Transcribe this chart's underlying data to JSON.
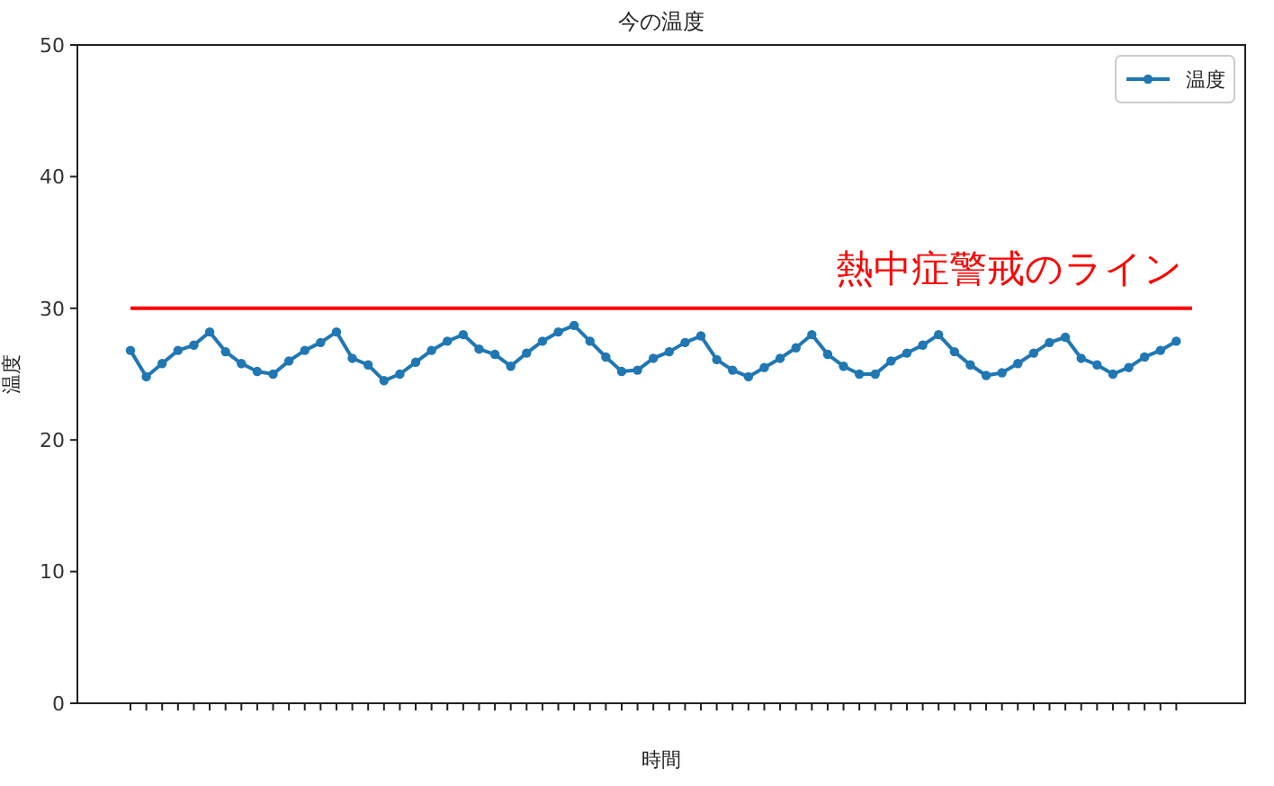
{
  "chart_data": {
    "type": "line",
    "title": "今の温度",
    "xlabel": "時間",
    "ylabel": "温度",
    "categories": [
      null,
      null,
      null,
      null,
      null,
      null,
      null,
      null,
      null,
      null,
      null,
      null,
      null,
      null,
      null,
      null,
      null,
      null,
      null,
      null,
      null,
      null,
      null,
      null,
      null,
      null,
      null,
      null,
      null,
      null,
      null,
      null,
      null,
      null,
      null,
      null,
      null,
      null,
      null,
      null,
      null,
      null,
      null,
      null,
      null,
      null,
      null,
      null,
      null,
      null,
      null,
      null,
      null,
      null,
      null,
      null,
      null,
      null,
      null,
      null,
      null,
      null,
      null,
      null,
      null,
      null,
      null
    ],
    "series": [
      {
        "name": "温度",
        "color": "#1f77b4",
        "values": [
          26.8,
          24.8,
          25.8,
          26.8,
          27.2,
          28.2,
          26.7,
          25.8,
          25.2,
          25.0,
          26.0,
          26.8,
          27.4,
          28.2,
          26.2,
          25.7,
          24.5,
          25.0,
          25.9,
          26.8,
          27.5,
          28.0,
          26.9,
          26.5,
          25.6,
          26.6,
          27.5,
          28.2,
          28.7,
          27.5,
          26.3,
          25.2,
          25.3,
          26.2,
          26.7,
          27.4,
          27.9,
          26.1,
          25.3,
          24.8,
          25.5,
          26.2,
          27.0,
          28.0,
          26.5,
          25.6,
          25.0,
          25.0,
          26.0,
          26.6,
          27.2,
          28.0,
          26.7,
          25.7,
          24.9,
          25.1,
          25.8,
          26.6,
          27.4,
          27.8,
          26.2,
          25.7,
          25.0,
          25.5,
          26.3,
          26.8,
          27.5
        ]
      }
    ],
    "ylim": [
      0,
      50
    ],
    "yticks": [
      0,
      10,
      20,
      30,
      40,
      50
    ],
    "ref_lines": [
      {
        "axis": "y",
        "value": 30,
        "label": "熱中症警戒のライン",
        "color": "#ff0000"
      }
    ],
    "legend": "top right",
    "marker": "circle",
    "line_style": "solid"
  }
}
